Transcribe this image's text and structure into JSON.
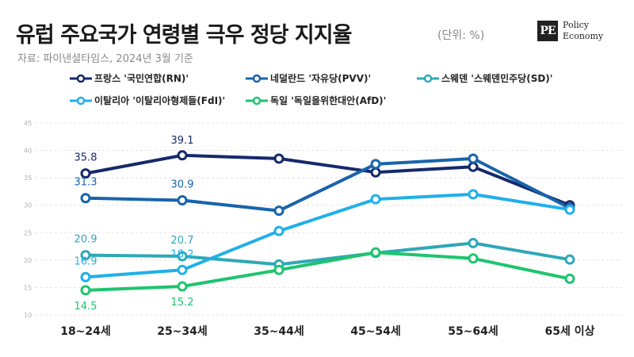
{
  "header": {
    "title": "유럽 주요국가 연령별 극우 정당 지지율",
    "unit": "(단위: %)",
    "source": "자료: 파이낸셜타임스, 2024년 3월 기준",
    "logo_mark": "PE",
    "logo_line1": "Policy",
    "logo_line2": "Economy"
  },
  "chart_data": {
    "type": "line",
    "x": [
      "18~24세",
      "25~34세",
      "35~44세",
      "45~54세",
      "55~64세",
      "65세 이상"
    ],
    "ylim": [
      10,
      45
    ],
    "yticks": [
      10,
      15,
      20,
      25,
      30,
      35,
      40,
      45
    ],
    "grid": true,
    "legend_position": "top",
    "series": [
      {
        "name": "프랑스 '국민연합(RN)'",
        "color": "#15296b",
        "values": [
          35.8,
          39.1,
          38.5,
          36.0,
          37.0,
          30.0
        ],
        "labels": [
          "35.8",
          "39.1",
          null,
          null,
          null,
          null
        ]
      },
      {
        "name": "네덜란드 '자유당(PVV)'",
        "color": "#1864ab",
        "values": [
          31.3,
          30.9,
          29.0,
          37.5,
          38.5,
          29.5
        ],
        "labels": [
          "31.3",
          "30.9",
          null,
          null,
          null,
          null
        ]
      },
      {
        "name": "스웨덴 '스웨덴민주당(SD)'",
        "color": "#2fa8b6",
        "values": [
          20.9,
          20.7,
          19.2,
          21.3,
          23.1,
          20.1
        ],
        "labels": [
          "20.9",
          "20.7",
          null,
          null,
          null,
          null
        ]
      },
      {
        "name": "이탈리아 '이탈리아형제들(FdI)'",
        "color": "#1fb0ea",
        "values": [
          16.9,
          18.2,
          25.3,
          31.1,
          32.0,
          29.2
        ],
        "labels": [
          "16.9",
          "18.2",
          null,
          null,
          null,
          null
        ]
      },
      {
        "name": "독일 '독일을위한대안(AfD)'",
        "color": "#1ec46e",
        "values": [
          14.5,
          15.2,
          18.2,
          21.4,
          20.3,
          16.6
        ],
        "labels": [
          "14.5",
          "15.2",
          null,
          null,
          null,
          null
        ]
      }
    ]
  }
}
